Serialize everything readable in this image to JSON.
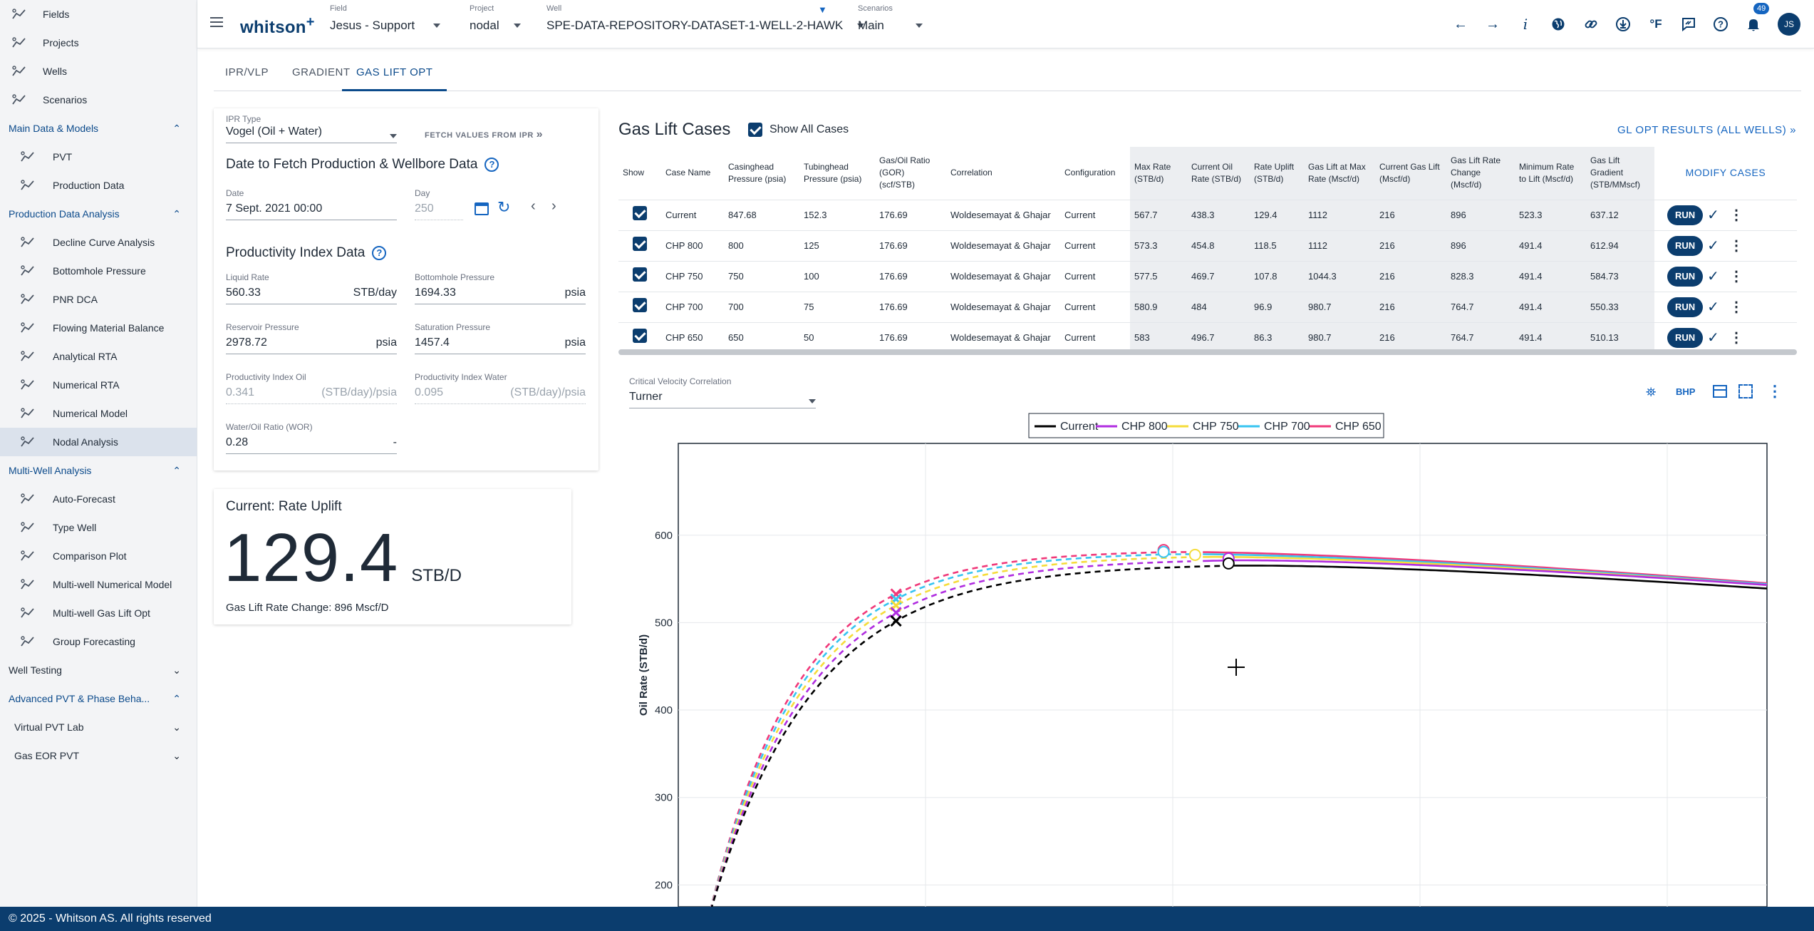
{
  "sidebar": {
    "top_items": [
      {
        "label": "Fields",
        "icon": "fields-icon"
      },
      {
        "label": "Projects",
        "icon": "projects-icon"
      },
      {
        "label": "Wells",
        "icon": "wells-icon"
      },
      {
        "label": "Scenarios",
        "icon": "scenarios-icon"
      }
    ],
    "sec_main": "Main Data & Models",
    "main_items": [
      {
        "label": "PVT",
        "icon": "flask-icon"
      },
      {
        "label": "Production Data",
        "icon": "production-chart-icon"
      }
    ],
    "sec_pda": "Production Data Analysis",
    "pda_items": [
      {
        "label": "Decline Curve Analysis",
        "icon": "decline-curve-icon"
      },
      {
        "label": "Bottomhole Pressure",
        "icon": "gauge-icon"
      },
      {
        "label": "PNR DCA",
        "icon": "pnr-icon"
      },
      {
        "label": "Flowing Material Balance",
        "icon": "fmb-icon"
      },
      {
        "label": "Analytical RTA",
        "icon": "analytical-rta-icon"
      },
      {
        "label": "Numerical RTA",
        "icon": "numerical-rta-icon"
      },
      {
        "label": "Numerical Model",
        "icon": "numerical-model-icon"
      },
      {
        "label": "Nodal Analysis",
        "icon": "nodal-icon"
      }
    ],
    "sec_mwa": "Multi-Well Analysis",
    "mwa_items": [
      {
        "label": "Auto-Forecast",
        "icon": "grid-icon"
      },
      {
        "label": "Type Well",
        "icon": "type-well-icon"
      },
      {
        "label": "Comparison Plot",
        "icon": "comparison-icon"
      },
      {
        "label": "Multi-well Numerical Model",
        "icon": "columns-icon"
      },
      {
        "label": "Multi-well Gas Lift Opt",
        "icon": "gas-lift-icon"
      },
      {
        "label": "Group Forecasting",
        "icon": "group-icon"
      }
    ],
    "sec_wt": "Well Testing",
    "sec_adv": "Advanced PVT & Phase Beha...",
    "adv_items": [
      "Virtual PVT Lab",
      "Gas EOR PVT"
    ]
  },
  "topbar": {
    "logo": "whitson",
    "logo_plus": "+",
    "field_label": "Field",
    "field_value": "Jesus - Support",
    "project_label": "Project",
    "project_value": "nodal",
    "well_label": "Well",
    "well_value": "SPE-DATA-REPOSITORY-DATASET-1-WELL-2-HAWK",
    "scenarios_label": "Scenarios",
    "scenarios_value": "Main",
    "notif_count": "49",
    "avatar": "JS",
    "temp_unit": "°F"
  },
  "tabs": [
    "IPR/VLP",
    "GRADIENT",
    "GAS LIFT OPT"
  ],
  "left_panel": {
    "ipr_type_label": "IPR Type",
    "ipr_type_value": "Vogel (Oil + Water)",
    "fetch_btn": "FETCH VALUES FROM IPR",
    "date_section": "Date to Fetch Production & Wellbore Data",
    "date_label": "Date",
    "date_value": "7 Sept. 2021 00:00",
    "day_label": "Day",
    "day_value": "250",
    "pi_section": "Productivity Index Data",
    "liquid_rate_label": "Liquid Rate",
    "liquid_rate_value": "560.33",
    "liquid_rate_unit": "STB/day",
    "bhp_label": "Bottomhole Pressure",
    "bhp_value": "1694.33",
    "bhp_unit": "psia",
    "res_p_label": "Reservoir Pressure",
    "res_p_value": "2978.72",
    "res_p_unit": "psia",
    "sat_p_label": "Saturation Pressure",
    "sat_p_value": "1457.4",
    "sat_p_unit": "psia",
    "pio_label": "Productivity Index Oil",
    "pio_value": "0.341",
    "pio_unit": "(STB/day)/psia",
    "piw_label": "Productivity Index Water",
    "piw_value": "0.095",
    "piw_unit": "(STB/day)/psia",
    "wor_label": "Water/Oil Ratio (WOR)",
    "wor_value": "0.28",
    "wor_unit": "-"
  },
  "uplift_card": {
    "title": "Current: Rate Uplift",
    "value": "129.4",
    "unit": "STB/D",
    "subtitle": "Gas Lift Rate Change: 896 Mscf/D"
  },
  "gl_cases": {
    "title": "Gas Lift Cases",
    "show_all": "Show All Cases",
    "results_link": "GL OPT RESULTS (ALL WELLS)",
    "modify": "MODIFY CASES",
    "run_label": "RUN",
    "headers": [
      "Show",
      "Case Name",
      "Casinghead Pressure (psia)",
      "Tubinghead Pressure (psia)",
      "Gas/Oil Ratio (GOR) (scf/STB)",
      "Correlation",
      "Configuration",
      "Max Rate (STB/d)",
      "Current Oil Rate (STB/d)",
      "Rate Uplift (STB/d)",
      "Gas Lift at Max Rate (Mscf/d)",
      "Current Gas Lift (Mscf/d)",
      "Gas Lift Rate Change (Mscf/d)",
      "Minimum Rate to Lift (Mscf/d)",
      "Gas Lift Gradient (STB/MMscf)"
    ],
    "rows": [
      [
        "Current",
        "847.68",
        "152.3",
        "176.69",
        "Woldesemayat & Ghajar",
        "Current",
        "567.7",
        "438.3",
        "129.4",
        "1112",
        "216",
        "896",
        "523.3",
        "637.12"
      ],
      [
        "CHP 800",
        "800",
        "125",
        "176.69",
        "Woldesemayat & Ghajar",
        "Current",
        "573.3",
        "454.8",
        "118.5",
        "1112",
        "216",
        "896",
        "491.4",
        "612.94"
      ],
      [
        "CHP 750",
        "750",
        "100",
        "176.69",
        "Woldesemayat & Ghajar",
        "Current",
        "577.5",
        "469.7",
        "107.8",
        "1044.3",
        "216",
        "828.3",
        "491.4",
        "584.73"
      ],
      [
        "CHP 700",
        "700",
        "75",
        "176.69",
        "Woldesemayat & Ghajar",
        "Current",
        "580.9",
        "484",
        "96.9",
        "980.7",
        "216",
        "764.7",
        "491.4",
        "550.33"
      ],
      [
        "CHP 650",
        "650",
        "50",
        "176.69",
        "Woldesemayat & Ghajar",
        "Current",
        "583",
        "496.7",
        "86.3",
        "980.7",
        "216",
        "764.7",
        "491.4",
        "510.13"
      ]
    ]
  },
  "chart_panel": {
    "cvc_label": "Critical Velocity Correlation",
    "cvc_value": "Turner",
    "bhp_btn": "BHP"
  },
  "colors": {
    "accent": "#0b3d6e",
    "link": "#1565c0"
  },
  "chart_data": {
    "type": "line",
    "ylabel": "Oil Rate (STB/d)",
    "xlabel": "",
    "ylim": [
      175,
      705
    ],
    "xlim": [
      0,
      2200
    ],
    "y_ticks": [
      200,
      300,
      400,
      500,
      600
    ],
    "grid": true,
    "legend_position": "top-center",
    "series": [
      {
        "name": "Current",
        "color": "#000000",
        "qmax": 567.7,
        "xmax": 1112,
        "x_unload": 440,
        "y_unload": 438,
        "x_stable": 1100,
        "y_end": 539
      },
      {
        "name": "CHP 800",
        "color": "#b02de0",
        "qmax": 573.3,
        "xmax": 1112,
        "x_unload": 440,
        "y_unload": 455,
        "x_stable": 1040,
        "y_end": 543
      },
      {
        "name": "CHP 750",
        "color": "#f5dc3a",
        "qmax": 577.5,
        "xmax": 1044.3,
        "x_unload": 440,
        "y_unload": 470,
        "x_stable": 1040,
        "y_end": 543
      },
      {
        "name": "CHP 700",
        "color": "#37c4f0",
        "qmax": 580.9,
        "xmax": 980.7,
        "x_unload": 440,
        "y_unload": 484,
        "x_stable": 1040,
        "y_end": 544
      },
      {
        "name": "CHP 650",
        "color": "#f0397a",
        "qmax": 583,
        "xmax": 980.7,
        "x_unload": 440,
        "y_unload": 497,
        "x_stable": 1040,
        "y_end": 545
      }
    ]
  }
}
